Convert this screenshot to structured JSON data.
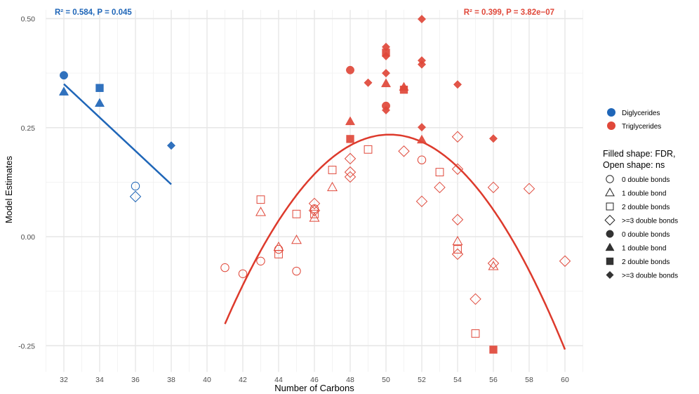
{
  "chart_data": {
    "type": "scatter",
    "xlabel": "Number of Carbons",
    "ylabel": "Model Estimates",
    "xlim": [
      31,
      61
    ],
    "ylim": [
      -0.31,
      0.52
    ],
    "xticks": [
      32,
      34,
      36,
      38,
      40,
      42,
      44,
      46,
      48,
      50,
      52,
      54,
      56,
      58,
      60
    ],
    "yticks": [
      -0.25,
      0,
      0.25,
      0.5
    ],
    "ytick_labels": [
      "-0.25",
      "0.00",
      "0.25",
      "0.50"
    ],
    "colors": {
      "Diglycerides": "#1f66b8",
      "Triglycerides": "#e0483a"
    },
    "annotations": [
      {
        "text": "R² = 0.584, P = 0.045",
        "group": "Diglycerides",
        "position": "top-left"
      },
      {
        "text": "R² = 0.399, P = 3.82e−07",
        "group": "Triglycerides",
        "position": "top-right"
      }
    ],
    "fits": [
      {
        "group": "Diglycerides",
        "type": "linear",
        "x": [
          32,
          38
        ],
        "y": [
          0.35,
          0.12
        ]
      },
      {
        "group": "Triglycerides",
        "type": "quadratic",
        "vertex": [
          50.2,
          0.234
        ],
        "a": -0.00513,
        "x_range": [
          41,
          60
        ]
      }
    ],
    "legend": {
      "position": "right",
      "groups": [
        "Diglycerides",
        "Triglycerides"
      ],
      "shape_title": "Filled shape: FDR,\nOpen shape: ns",
      "shape_title_lines": [
        "Filled shape: FDR,",
        "Open shape: ns"
      ],
      "shapes": [
        {
          "shape": "circle",
          "filled": false,
          "label": "0 double bonds"
        },
        {
          "shape": "triangle",
          "filled": false,
          "label": "1 double bond"
        },
        {
          "shape": "square",
          "filled": false,
          "label": "2 double bonds"
        },
        {
          "shape": "diamond",
          "filled": false,
          "label": ">=3 double bonds"
        },
        {
          "shape": "circle",
          "filled": true,
          "label": "0 double bonds"
        },
        {
          "shape": "triangle",
          "filled": true,
          "label": "1 double bond"
        },
        {
          "shape": "square",
          "filled": true,
          "label": "2 double bonds"
        },
        {
          "shape": "diamond",
          "filled": true,
          "label": ">=3 double bonds"
        }
      ]
    },
    "series": [
      {
        "name": "Diglycerides",
        "points": [
          [
            32,
            0.37,
            "circle",
            true
          ],
          [
            32,
            0.332,
            "triangle",
            true
          ],
          [
            34,
            0.341,
            "square",
            true
          ],
          [
            34,
            0.306,
            "triangle",
            true
          ],
          [
            36,
            0.116,
            "circle",
            false
          ],
          [
            36,
            0.092,
            "diamond",
            false
          ],
          [
            38,
            0.209,
            "diamond",
            true
          ]
        ]
      },
      {
        "name": "Triglycerides",
        "points": [
          [
            48,
            0.382,
            "circle",
            true
          ],
          [
            48,
            0.264,
            "triangle",
            true
          ],
          [
            48,
            0.224,
            "square",
            true
          ],
          [
            49,
            0.353,
            "diamond",
            true
          ],
          [
            50,
            0.435,
            "diamond",
            true
          ],
          [
            50,
            0.422,
            "square",
            true
          ],
          [
            50,
            0.414,
            "diamond",
            true
          ],
          [
            50,
            0.375,
            "diamond",
            true
          ],
          [
            50,
            0.351,
            "triangle",
            true
          ],
          [
            50,
            0.3,
            "circle",
            true
          ],
          [
            50,
            0.29,
            "diamond",
            true
          ],
          [
            51,
            0.343,
            "triangle",
            true
          ],
          [
            51,
            0.337,
            "square",
            true
          ],
          [
            52,
            0.499,
            "diamond",
            true
          ],
          [
            52,
            0.404,
            "diamond",
            true
          ],
          [
            52,
            0.395,
            "diamond",
            true
          ],
          [
            52,
            0.251,
            "diamond",
            true
          ],
          [
            52,
            0.222,
            "triangle",
            true
          ],
          [
            54,
            0.349,
            "diamond",
            true
          ],
          [
            56,
            0.225,
            "diamond",
            true
          ],
          [
            56,
            -0.259,
            "square",
            true
          ],
          [
            41,
            -0.071,
            "circle",
            false
          ],
          [
            42,
            -0.085,
            "circle",
            false
          ],
          [
            43,
            0.085,
            "square",
            false
          ],
          [
            43,
            0.056,
            "triangle",
            false
          ],
          [
            43,
            -0.056,
            "circle",
            false
          ],
          [
            44,
            -0.024,
            "triangle",
            false
          ],
          [
            44,
            -0.029,
            "circle",
            false
          ],
          [
            44,
            -0.04,
            "square",
            false
          ],
          [
            45,
            0.052,
            "square",
            false
          ],
          [
            45,
            -0.008,
            "triangle",
            false
          ],
          [
            45,
            -0.079,
            "circle",
            false
          ],
          [
            46,
            0.076,
            "diamond",
            false
          ],
          [
            46,
            0.064,
            "circle",
            false
          ],
          [
            46,
            0.06,
            "diamond",
            false
          ],
          [
            46,
            0.052,
            "square",
            false
          ],
          [
            46,
            0.043,
            "triangle",
            false
          ],
          [
            47,
            0.153,
            "square",
            false
          ],
          [
            47,
            0.113,
            "triangle",
            false
          ],
          [
            48,
            0.179,
            "diamond",
            false
          ],
          [
            48,
            0.148,
            "diamond",
            false
          ],
          [
            48,
            0.137,
            "diamond",
            false
          ],
          [
            49,
            0.2,
            "square",
            false
          ],
          [
            51,
            0.196,
            "diamond",
            false
          ],
          [
            52,
            0.176,
            "circle",
            false
          ],
          [
            52,
            0.081,
            "diamond",
            false
          ],
          [
            53,
            0.148,
            "square",
            false
          ],
          [
            53,
            0.113,
            "diamond",
            false
          ],
          [
            54,
            0.229,
            "diamond",
            false
          ],
          [
            54,
            0.155,
            "diamond",
            false
          ],
          [
            54,
            0.039,
            "diamond",
            false
          ],
          [
            54,
            -0.011,
            "triangle",
            false
          ],
          [
            54,
            -0.029,
            "square",
            false
          ],
          [
            54,
            -0.04,
            "diamond",
            false
          ],
          [
            55,
            -0.143,
            "diamond",
            false
          ],
          [
            55,
            -0.222,
            "square",
            false
          ],
          [
            56,
            0.113,
            "diamond",
            false
          ],
          [
            56,
            -0.061,
            "diamond",
            false
          ],
          [
            56,
            -0.068,
            "triangle",
            false
          ],
          [
            58,
            0.11,
            "diamond",
            false
          ],
          [
            60,
            -0.056,
            "diamond",
            false
          ]
        ]
      }
    ]
  }
}
